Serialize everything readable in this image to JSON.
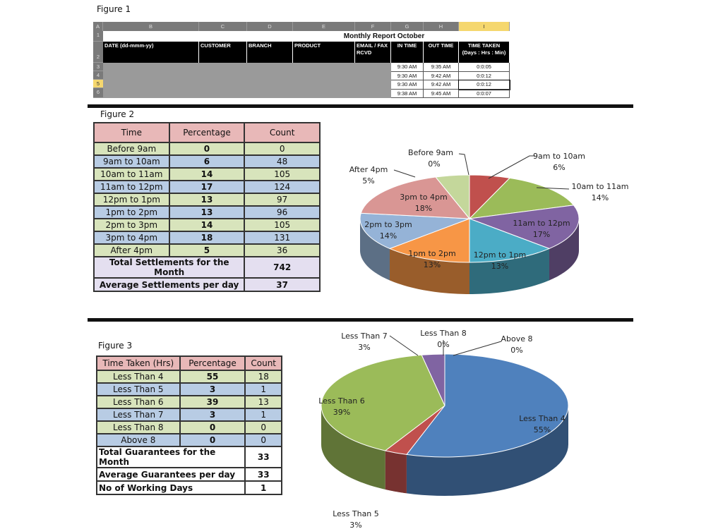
{
  "figure1": {
    "label": "Figure 1",
    "columns": [
      "A",
      "B",
      "C",
      "D",
      "E",
      "F",
      "G",
      "H",
      "I"
    ],
    "rows": [
      "1",
      "2",
      "3",
      "4",
      "5",
      "6"
    ],
    "title": "Monthly Report October",
    "headers": [
      "DATE (dd-mmm-yy)",
      "CUSTOMER",
      "BRANCH",
      "PRODUCT",
      "EMAIL / FAX RCVD",
      "IN TIME",
      "OUT TIME",
      "TIME TAKEN (Days : Hrs : Min)"
    ],
    "data": [
      [
        "9:30 AM",
        "9:35 AM",
        "0:0:05"
      ],
      [
        "9:30 AM",
        "9:42 AM",
        "0:0:12"
      ],
      [
        "9:30 AM",
        "9:42 AM",
        "0:0:12"
      ],
      [
        "9:38 AM",
        "9:45 AM",
        "0:0:07"
      ]
    ]
  },
  "figure2": {
    "label": "Figure 2",
    "table": {
      "headers": [
        "Time",
        "Percentage",
        "Count"
      ],
      "rows": [
        [
          "Before 9am",
          "0",
          "0"
        ],
        [
          "9am to 10am",
          "6",
          "48"
        ],
        [
          "10am to 11am",
          "14",
          "105"
        ],
        [
          "11am to 12pm",
          "17",
          "124"
        ],
        [
          "12pm to 1pm",
          "13",
          "97"
        ],
        [
          "1pm to 2pm",
          "13",
          "96"
        ],
        [
          "2pm to 3pm",
          "14",
          "105"
        ],
        [
          "3pm to 4pm",
          "18",
          "131"
        ],
        [
          "After 4pm",
          "5",
          "36"
        ]
      ],
      "summary": [
        [
          "Total Settlements for the Month",
          "742"
        ],
        [
          "Average Settlements per day",
          "37"
        ]
      ]
    }
  },
  "figure3": {
    "label": "Figure 3",
    "table": {
      "headers": [
        "Time Taken (Hrs)",
        "Percentage",
        "Count"
      ],
      "rows": [
        [
          "Less Than 4",
          "55",
          "18"
        ],
        [
          "Less Than 5",
          "3",
          "1"
        ],
        [
          "Less Than 6",
          "39",
          "13"
        ],
        [
          "Less Than 7",
          "3",
          "1"
        ],
        [
          "Less Than 8",
          "0",
          "0"
        ],
        [
          "Above 8",
          "0",
          "0"
        ]
      ],
      "summary": [
        [
          "Total Guarantees for the Month",
          "33"
        ],
        [
          "Average Guarantees per day",
          "33"
        ],
        [
          "No of Working Days",
          "1"
        ]
      ]
    }
  },
  "chart_data": [
    {
      "type": "pie",
      "title": "",
      "categories": [
        "Before 9am",
        "9am to 10am",
        "10am to 11am",
        "11am to 12pm",
        "12pm to 1pm",
        "1pm to 2pm",
        "2pm to 3pm",
        "3pm to 4pm",
        "After 4pm"
      ],
      "values": [
        0,
        6,
        14,
        17,
        13,
        13,
        14,
        18,
        5
      ],
      "labels": [
        "0%",
        "6%",
        "14%",
        "17%",
        "13%",
        "13%",
        "14%",
        "18%",
        "5%"
      ],
      "colors": [
        "#8064a2",
        "#c0504d",
        "#9bbb59",
        "#8064a2",
        "#4bacc6",
        "#f79646",
        "#95b3d7",
        "#d99694",
        "#c4d79b"
      ],
      "three_d": true
    },
    {
      "type": "pie",
      "title": "",
      "categories": [
        "Less Than 4",
        "Less Than 5",
        "Less Than 6",
        "Less Than 7",
        "Less Than 8",
        "Above 8"
      ],
      "values": [
        55,
        3,
        39,
        3,
        0,
        0
      ],
      "labels": [
        "55%",
        "3%",
        "39%",
        "3%",
        "0%",
        "0%"
      ],
      "colors": [
        "#4f81bd",
        "#c0504d",
        "#9bbb59",
        "#8064a2",
        "#4bacc6",
        "#f79646"
      ],
      "three_d": true
    }
  ]
}
